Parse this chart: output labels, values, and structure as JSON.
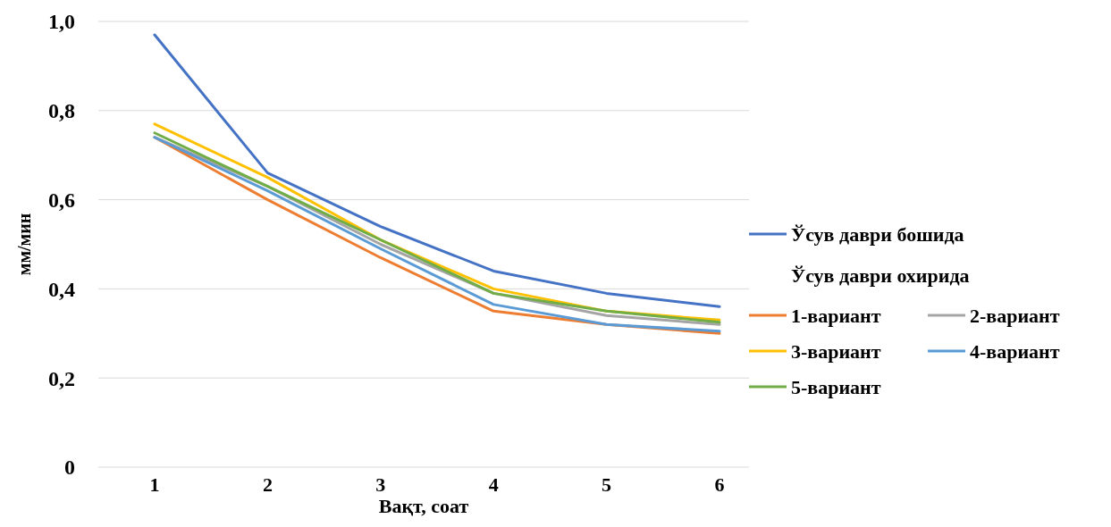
{
  "chart_data": {
    "type": "line",
    "xlabel": "Вақт, соат",
    "ylabel": "мм/мин",
    "categories": [
      "1",
      "2",
      "3",
      "4",
      "5",
      "6"
    ],
    "ylim": [
      0,
      1
    ],
    "yticks": [
      {
        "value": 0,
        "label": "0"
      },
      {
        "value": 0.2,
        "label": "0,2"
      },
      {
        "value": 0.4,
        "label": "0,4"
      },
      {
        "value": 0.6,
        "label": "0,6"
      },
      {
        "value": 0.8,
        "label": "0,8"
      },
      {
        "value": 1,
        "label": "1,0"
      }
    ],
    "grid": "y",
    "legend": "right",
    "marker": "none",
    "line_style": "solid",
    "annotations": [
      "Ўсув даври охирида"
    ],
    "series": [
      {
        "name": "Ўсув даври бошида",
        "color": "#4472c4",
        "values": [
          0.97,
          0.66,
          0.54,
          0.44,
          0.39,
          0.36
        ]
      },
      {
        "name": "1-вариант",
        "color": "#ed7d31",
        "values": [
          0.74,
          0.6,
          0.47,
          0.35,
          0.32,
          0.3
        ]
      },
      {
        "name": "2-вариант",
        "color": "#a5a5a5",
        "values": [
          0.74,
          0.63,
          0.5,
          0.39,
          0.34,
          0.32
        ]
      },
      {
        "name": "3-вариант",
        "color": "#ffc000",
        "values": [
          0.77,
          0.65,
          0.51,
          0.4,
          0.35,
          0.33
        ]
      },
      {
        "name": "4-вариант",
        "color": "#5b9bd5",
        "values": [
          0.74,
          0.62,
          0.49,
          0.365,
          0.32,
          0.305
        ]
      },
      {
        "name": "5-вариант",
        "color": "#70ad47",
        "values": [
          0.75,
          0.63,
          0.51,
          0.39,
          0.35,
          0.325
        ]
      }
    ]
  }
}
